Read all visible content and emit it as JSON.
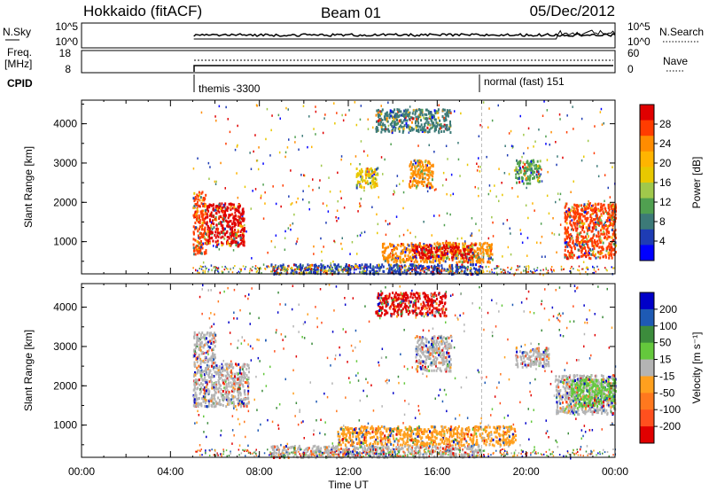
{
  "header": {
    "station": "Hokkaido (fitACF)",
    "beam": "Beam 01",
    "date": "05/Dec/2012"
  },
  "top_panels": {
    "nsky_label": "N.Sky",
    "nsky_ticks": [
      "10^5",
      "10^0"
    ],
    "nsearch_label": "N.Search",
    "nsearch_ticks": [
      "10^5",
      "10^0"
    ],
    "freq_label_line1": "Freq.",
    "freq_label_line2": "[MHz]",
    "freq_ticks": [
      "18",
      "8"
    ],
    "nave_label": "Nave",
    "nave_ticks": [
      "60",
      "0"
    ],
    "cpid_label": "CPID",
    "cpid_events": [
      {
        "time_h": 5.05,
        "label": "themis -3300"
      },
      {
        "time_h": 18.0,
        "label": "normal (fast) 151"
      }
    ]
  },
  "chart_data": [
    {
      "type": "heatmap",
      "quantity": "power",
      "ylabel": "Slant Range [km]",
      "xlabel": "",
      "xlim": [
        0,
        24
      ],
      "ylim": [
        180,
        4600
      ],
      "yticks": [
        1000,
        2000,
        3000,
        4000
      ],
      "colorbar": {
        "label": "Power [dB]",
        "ticks": [
          "28",
          "24",
          "20",
          "16",
          "12",
          "8",
          "4"
        ],
        "colors": [
          "#e00000",
          "#ff3c00",
          "#ff8c00",
          "#ffb400",
          "#e8c800",
          "#a0c84b",
          "#50a050",
          "#3c7a78",
          "#1e3cb4",
          "#0000ff"
        ]
      },
      "regions": [
        {
          "t0": 5.0,
          "t1": 5.6,
          "r0": 700,
          "r1": 2300,
          "color": "#ff3c00"
        },
        {
          "t0": 5.6,
          "t1": 7.3,
          "r0": 900,
          "r1": 2000,
          "color": "#e00000"
        },
        {
          "t0": 13.5,
          "t1": 18.5,
          "r0": 500,
          "r1": 1000,
          "color": "#ff8c00"
        },
        {
          "t0": 14.8,
          "t1": 17.6,
          "r0": 600,
          "r1": 950,
          "color": "#e00000"
        },
        {
          "t0": 21.7,
          "t1": 24.0,
          "r0": 600,
          "r1": 2000,
          "color": "#ff3c00"
        },
        {
          "t0": 13.2,
          "t1": 16.6,
          "r0": 3800,
          "r1": 4400,
          "color": "#3c7a78"
        },
        {
          "t0": 14.7,
          "t1": 15.8,
          "r0": 2400,
          "r1": 3100,
          "color": "#ff8c00"
        },
        {
          "t0": 12.3,
          "t1": 13.3,
          "r0": 2400,
          "r1": 2900,
          "color": "#e8c800"
        },
        {
          "t0": 19.5,
          "t1": 20.6,
          "r0": 2500,
          "r1": 3100,
          "color": "#50a050"
        },
        {
          "t0": 8.5,
          "t1": 18.0,
          "r0": 200,
          "r1": 450,
          "color": "#1e3cb4"
        }
      ]
    },
    {
      "type": "heatmap",
      "quantity": "velocity",
      "ylabel": "Slant Range [km]",
      "xlabel": "Time UT",
      "xlim": [
        0,
        24
      ],
      "ylim": [
        180,
        4600
      ],
      "yticks": [
        1000,
        2000,
        3000,
        4000
      ],
      "xticks": [
        "00:00",
        "04:00",
        "08:00",
        "12:00",
        "16:00",
        "20:00",
        "00:00"
      ],
      "colorbar": {
        "label": "Velocity [m s⁻¹]",
        "ticks": [
          "200",
          "100",
          "50",
          "15",
          "-15",
          "-50",
          "-100",
          "-200"
        ],
        "colors": [
          "#0000c8",
          "#1e5ab4",
          "#3c8c3c",
          "#64c83c",
          "#b4b4b4",
          "#ffa01e",
          "#ff781e",
          "#ff501e",
          "#e00000"
        ]
      },
      "regions": [
        {
          "t0": 5.0,
          "t1": 7.5,
          "r0": 1500,
          "r1": 2600,
          "color": "#b4b4b4"
        },
        {
          "t0": 5.0,
          "t1": 6.0,
          "r0": 2600,
          "r1": 3400,
          "color": "#b4b4b4"
        },
        {
          "t0": 11.5,
          "t1": 19.5,
          "r0": 500,
          "r1": 1000,
          "color": "#ffa01e"
        },
        {
          "t0": 13.2,
          "t1": 16.4,
          "r0": 3800,
          "r1": 4400,
          "color": "#e00000"
        },
        {
          "t0": 15.0,
          "t1": 16.6,
          "r0": 2400,
          "r1": 3300,
          "color": "#b4b4b4"
        },
        {
          "t0": 21.3,
          "t1": 24.0,
          "r0": 1300,
          "r1": 2300,
          "color": "#b4b4b4"
        },
        {
          "t0": 22.0,
          "t1": 24.0,
          "r0": 1500,
          "r1": 2200,
          "color": "#64c83c"
        },
        {
          "t0": 8.5,
          "t1": 18.0,
          "r0": 200,
          "r1": 500,
          "color": "#b4b4b4"
        },
        {
          "t0": 19.5,
          "t1": 21.0,
          "r0": 2500,
          "r1": 3000,
          "color": "#b4b4b4"
        }
      ]
    }
  ]
}
